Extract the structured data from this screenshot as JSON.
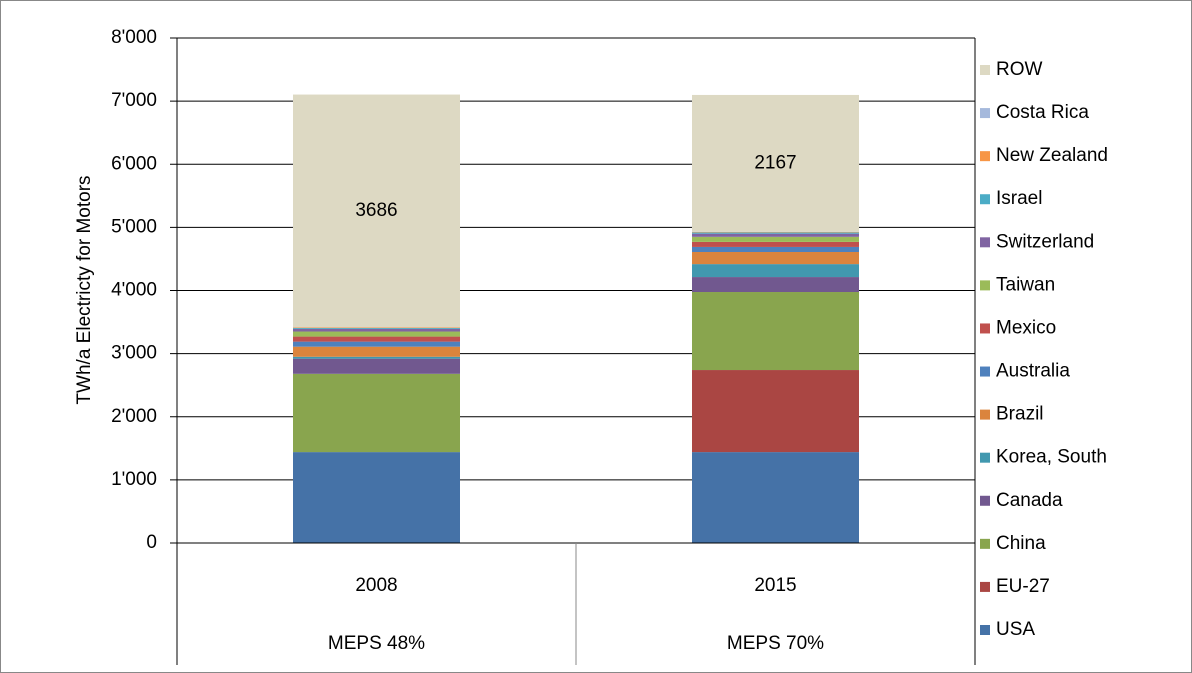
{
  "chart_data": {
    "type": "stacked_bar",
    "y_label": "TWh/a Electricty for Motors",
    "categories": [
      "2008",
      "2015"
    ],
    "category_groups": [
      "MEPS 48%",
      "MEPS 70%"
    ],
    "ylim": [
      0,
      8000
    ],
    "yticks": [
      0,
      {
        "value": 1000,
        "label": "1'000"
      },
      {
        "value": 2000,
        "label": "2'000"
      },
      {
        "value": 3000,
        "label": "3'000"
      },
      {
        "value": 4000,
        "label": "4'000"
      },
      {
        "value": 5000,
        "label": "5'000"
      },
      {
        "value": 6000,
        "label": "6'000"
      },
      {
        "value": 7000,
        "label": "7'000"
      },
      {
        "value": 8000,
        "label": "8'000"
      }
    ],
    "grid": true,
    "legend": "right",
    "series": [
      {
        "name": "USA",
        "color": "#4572a7",
        "values": [
          1440,
          1440
        ]
      },
      {
        "name": "EU-27",
        "color": "#aa4643",
        "values": [
          0,
          1300
        ]
      },
      {
        "name": "China",
        "color": "#89a54e",
        "values": [
          1240,
          1236
        ]
      },
      {
        "name": "Canada",
        "color": "#71588f",
        "values": [
          240,
          237
        ]
      },
      {
        "name": "Korea, South",
        "color": "#4198af",
        "values": [
          30,
          205
        ]
      },
      {
        "name": "Brazil",
        "color": "#db843d",
        "values": [
          160,
          192
        ]
      },
      {
        "name": "Australia",
        "color": "#4f81bd",
        "values": [
          80,
          80
        ]
      },
      {
        "name": "Mexico",
        "color": "#c0504d",
        "values": [
          80,
          80
        ]
      },
      {
        "name": "Taiwan",
        "color": "#9bbb59",
        "values": [
          80,
          80
        ]
      },
      {
        "name": "Switzerland",
        "color": "#8064a2",
        "values": [
          40,
          50
        ]
      },
      {
        "name": "Israel",
        "color": "#4bacc6",
        "values": [
          15,
          20
        ]
      },
      {
        "name": "New Zealand",
        "color": "#f79646",
        "values": [
          10,
          8
        ]
      },
      {
        "name": "Costa Rica",
        "color": "#a5b9dc",
        "values": [
          3,
          3
        ]
      },
      {
        "name": "ROW",
        "color": "#ddd9c3",
        "values": [
          3686,
          2167
        ],
        "show_labels": true
      }
    ]
  }
}
